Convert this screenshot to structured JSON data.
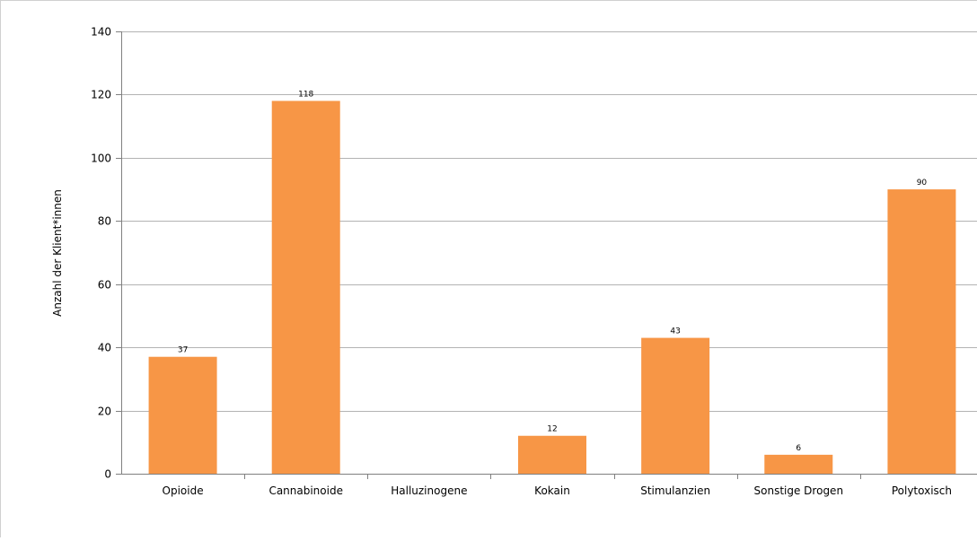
{
  "chart_data": {
    "type": "bar",
    "title": "",
    "xlabel": "",
    "ylabel": "Anzahl der Klient*innen",
    "ylim": [
      0,
      140
    ],
    "yticks": [
      0,
      20,
      40,
      60,
      80,
      100,
      120,
      140
    ],
    "categories": [
      "Opioide",
      "Cannabinoide",
      "Halluzinogene",
      "Kokain",
      "Stimulanzien",
      "Sonstige Drogen",
      "Polytoxisch"
    ],
    "values": [
      37,
      118,
      0,
      12,
      43,
      6,
      90
    ],
    "data_labels": [
      "37",
      "118",
      "",
      "12",
      "43",
      "6",
      "90"
    ],
    "grid": true,
    "legend": "none",
    "colors": {
      "bar": "#f79646",
      "grid": "#b3b3b3",
      "axis": "#808080",
      "frame": "#d0d0d0"
    }
  }
}
